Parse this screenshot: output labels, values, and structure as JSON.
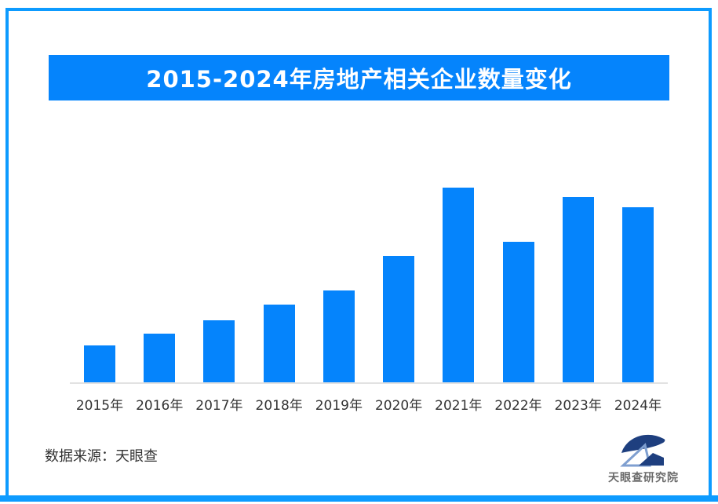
{
  "title_banner": {
    "text": "2015-2024年房地产相关企业数量变化"
  },
  "chart_data": {
    "type": "bar",
    "title": "2015-2024年房地产相关企业数量变化",
    "categories": [
      "2015年",
      "2016年",
      "2017年",
      "2018年",
      "2019年",
      "2020年",
      "2021年",
      "2022年",
      "2023年",
      "2024年"
    ],
    "values": [
      19,
      25,
      32,
      40,
      47,
      65,
      100,
      72,
      95,
      90
    ],
    "value_estimation": "no numeric y-axis shown; values estimated from bar heights relative to tallest bar (2021 = 100)",
    "xlabel": "",
    "ylabel": "",
    "ylim": [
      0,
      100
    ],
    "grid": false,
    "legend": false,
    "bar_color": "#0584fc",
    "axis_line_color": "#e2e2e2"
  },
  "footer": {
    "source_text": "数据来源：天眼查",
    "logo_text": "天眼查研究院"
  },
  "colors": {
    "accent_blue": "#0584fc",
    "frame_blue": "#0d9bff",
    "logo_navy": "#1e3f7f",
    "logo_light_blue": "#7f9fd0",
    "text_dark": "#333333",
    "logo_text_gray": "#6a6a6a"
  }
}
